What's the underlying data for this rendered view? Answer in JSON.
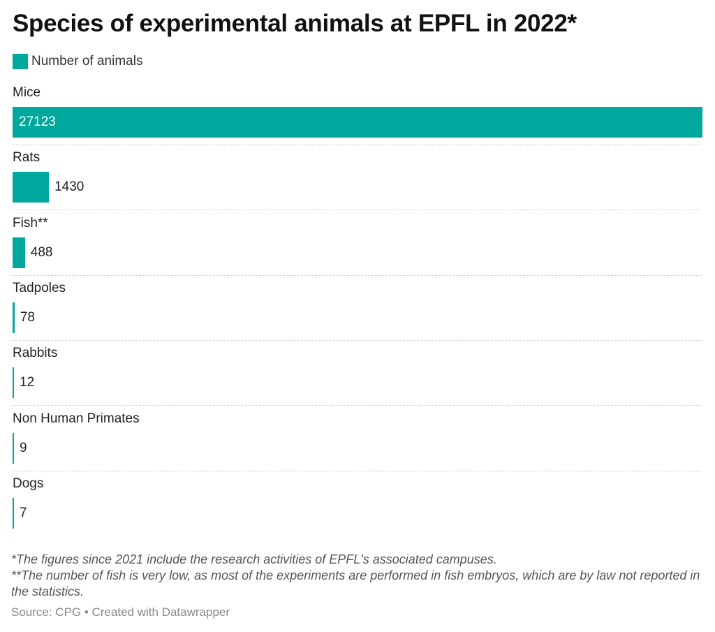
{
  "chart_data": {
    "type": "bar",
    "orientation": "horizontal",
    "title": "Species of experimental animals at EPFL in 2022*",
    "legend": [
      {
        "label": "Number of animals",
        "color": "#00a79d"
      }
    ],
    "categories": [
      "Mice",
      "Rats",
      "Fish**",
      "Tadpoles",
      "Rabbits",
      "Non Human Primates",
      "Dogs"
    ],
    "series": [
      {
        "name": "Number of animals",
        "values": [
          27123,
          1430,
          488,
          78,
          12,
          9,
          7
        ]
      }
    ],
    "xlim": [
      0,
      27123
    ],
    "data_labels": true,
    "grid": false
  },
  "notes": [
    "*The figures since 2021 include the research activities of EPFL's associated campuses.",
    "**The number of fish is very low, as most of the experiments are performed in fish embryos, which are by law not reported in the statistics."
  ],
  "source": "Source: CPG • Created with Datawrapper",
  "colors": {
    "bar": "#00a79d",
    "label_inside": "#ffffff",
    "label_outside": "#222222"
  }
}
